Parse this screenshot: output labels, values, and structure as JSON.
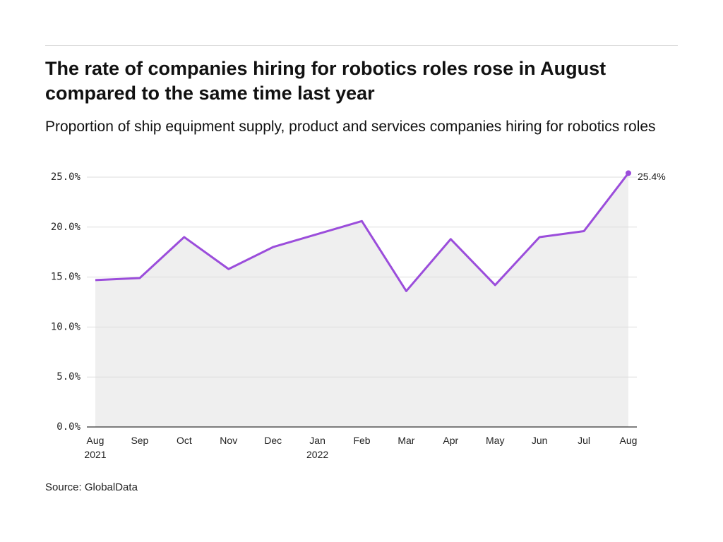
{
  "chart_data": {
    "type": "line",
    "title": "The rate of companies hiring for robotics roles rose in August compared to the same time last year",
    "subtitle": "Proportion of ship equipment supply, product and services companies hiring for robotics roles",
    "source": "Source: GlobalData",
    "categories": [
      "Aug\n2021",
      "Sep",
      "Oct",
      "Nov",
      "Dec",
      "Jan\n2022",
      "Feb",
      "Mar",
      "Apr",
      "May",
      "Jun",
      "Jul",
      "Aug"
    ],
    "values": [
      14.7,
      14.9,
      19.0,
      15.8,
      18.0,
      19.3,
      20.6,
      13.6,
      18.8,
      14.2,
      19.0,
      19.6,
      25.4
    ],
    "value_labels": [
      null,
      null,
      null,
      null,
      null,
      null,
      null,
      null,
      null,
      null,
      null,
      null,
      "25.4%"
    ],
    "color": "#9b4ddb",
    "area_color": "#efefef",
    "ylim": [
      0,
      25
    ],
    "yticks": [
      {
        "value": 0,
        "label": "0.0%"
      },
      {
        "value": 5,
        "label": "5.0%"
      },
      {
        "value": 10,
        "label": "10.0%"
      },
      {
        "value": 15,
        "label": "15.0%"
      },
      {
        "value": 20,
        "label": "20.0%"
      },
      {
        "value": 25,
        "label": "25.0%"
      }
    ],
    "grid": true
  }
}
